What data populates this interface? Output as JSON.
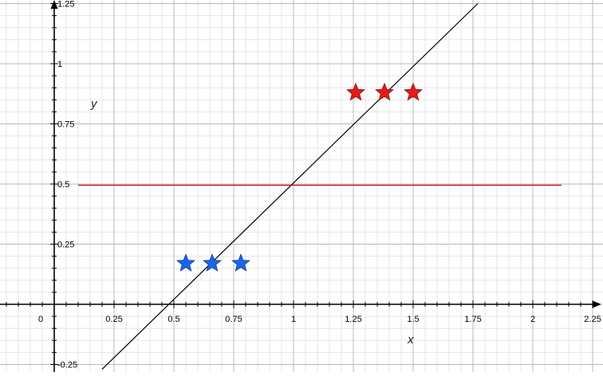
{
  "chart_data": {
    "type": "scatter",
    "title": "",
    "xlabel": "x",
    "ylabel": "y",
    "xlim": [
      -0.2,
      2.25
    ],
    "ylim": [
      -0.27,
      1.25
    ],
    "grid": true,
    "x_ticks": [
      0,
      0.25,
      0.5,
      0.75,
      1,
      1.25,
      1.5,
      1.75,
      2,
      2.25
    ],
    "x_tick_labels": [
      "0",
      "0.25",
      "0.5",
      "0.75",
      "1",
      "1.25",
      "1.5",
      "1.75",
      "2",
      "2.25"
    ],
    "y_ticks": [
      -0.25,
      0.25,
      0.5,
      0.75,
      1,
      1.25
    ],
    "y_tick_labels": [
      "-0.25",
      "0.25",
      "0.5",
      "0.75",
      "1",
      "1.25"
    ],
    "series": [
      {
        "color": "#1a66e6",
        "marker": "star",
        "points": [
          [
            0.55,
            0.17
          ],
          [
            0.66,
            0.17
          ],
          [
            0.78,
            0.17
          ]
        ]
      },
      {
        "color": "#e61a1a",
        "marker": "star",
        "points": [
          [
            1.26,
            0.88
          ],
          [
            1.38,
            0.88
          ],
          [
            1.5,
            0.88
          ]
        ]
      }
    ],
    "lines": [
      {
        "color": "#000000",
        "from": [
          0.2,
          -0.27
        ],
        "to": [
          1.77,
          1.25
        ]
      },
      {
        "color": "#cc0000",
        "from": [
          0.1,
          0.495
        ],
        "to": [
          2.12,
          0.495
        ]
      }
    ]
  }
}
